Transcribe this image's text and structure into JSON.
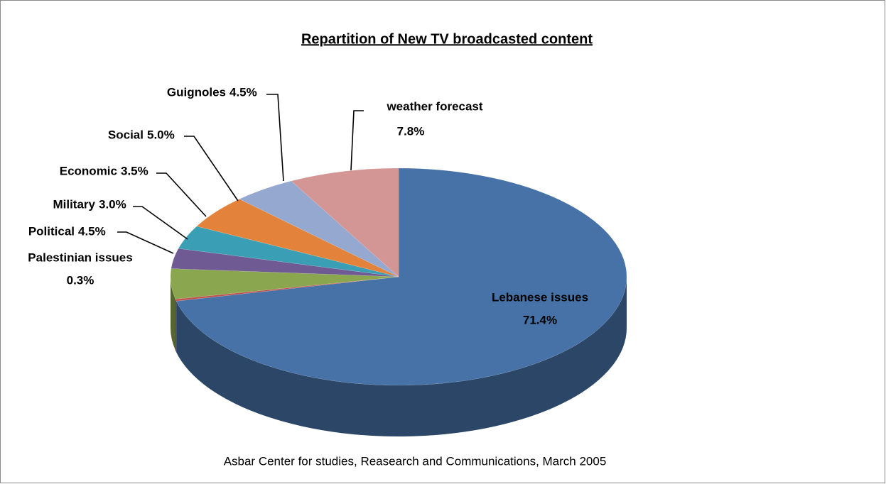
{
  "chart_data": {
    "type": "pie3d",
    "title": "Repartition of New TV broadcasted content",
    "source": "Asbar Center for studies, Reasearch and Communications, March 2005",
    "categories": [
      "Lebanese issues",
      "Palestinian issues",
      "Political",
      "Military",
      "Economic",
      "Social",
      "Guignoles",
      "weather forecast"
    ],
    "values": [
      71.4,
      0.3,
      4.5,
      3.0,
      3.5,
      5.0,
      4.5,
      7.8
    ],
    "value_labels": [
      "71.4%",
      "0.3%",
      "4.5%",
      "3.0%",
      "3.5%",
      "5.0%",
      "4.5%",
      "7.8%"
    ],
    "colors": [
      "#4672a7",
      "#c0504d",
      "#8aa64e",
      "#6f5a93",
      "#3a9fb4",
      "#e3823a",
      "#95a8d0",
      "#d49694"
    ]
  }
}
